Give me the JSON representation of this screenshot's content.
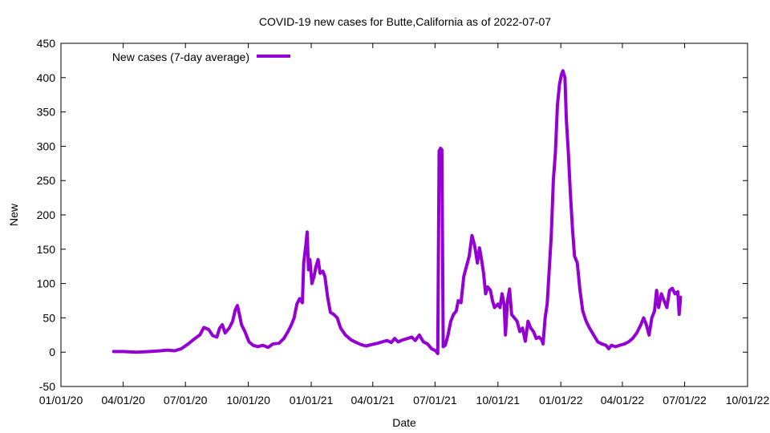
{
  "chart_data": {
    "type": "line",
    "title": "COVID-19 new cases for Butte,California as of 2022-07-07",
    "xlabel": "Date",
    "ylabel": "New",
    "xlim": [
      "2020-01-01",
      "2022-10-01"
    ],
    "ylim": [
      -50,
      450
    ],
    "x_ticks": [
      {
        "date": "2020-01-01",
        "label": "01/01/20"
      },
      {
        "date": "2020-04-01",
        "label": "04/01/20"
      },
      {
        "date": "2020-07-01",
        "label": "07/01/20"
      },
      {
        "date": "2020-10-01",
        "label": "10/01/20"
      },
      {
        "date": "2021-01-01",
        "label": "01/01/21"
      },
      {
        "date": "2021-04-01",
        "label": "04/01/21"
      },
      {
        "date": "2021-07-01",
        "label": "07/01/21"
      },
      {
        "date": "2021-10-01",
        "label": "10/01/21"
      },
      {
        "date": "2022-01-01",
        "label": "01/01/22"
      },
      {
        "date": "2022-04-01",
        "label": "04/01/22"
      },
      {
        "date": "2022-07-01",
        "label": "07/01/22"
      },
      {
        "date": "2022-10-01",
        "label": "10/01/22"
      }
    ],
    "y_ticks": [
      -50,
      0,
      50,
      100,
      150,
      200,
      250,
      300,
      350,
      400,
      450
    ],
    "grid": false,
    "legend": {
      "position": "top-left"
    },
    "series": [
      {
        "name": "New cases (7-day average)",
        "color": "#9400d3",
        "points": [
          [
            "2020-03-18",
            1
          ],
          [
            "2020-04-01",
            1
          ],
          [
            "2020-04-20",
            0
          ],
          [
            "2020-05-10",
            1
          ],
          [
            "2020-05-25",
            2
          ],
          [
            "2020-06-05",
            3
          ],
          [
            "2020-06-15",
            2
          ],
          [
            "2020-06-25",
            5
          ],
          [
            "2020-07-05",
            12
          ],
          [
            "2020-07-15",
            20
          ],
          [
            "2020-07-22",
            25
          ],
          [
            "2020-07-28",
            36
          ],
          [
            "2020-08-04",
            33
          ],
          [
            "2020-08-10",
            24
          ],
          [
            "2020-08-16",
            22
          ],
          [
            "2020-08-20",
            35
          ],
          [
            "2020-08-24",
            40
          ],
          [
            "2020-08-28",
            28
          ],
          [
            "2020-09-03",
            35
          ],
          [
            "2020-09-08",
            45
          ],
          [
            "2020-09-12",
            62
          ],
          [
            "2020-09-15",
            68
          ],
          [
            "2020-09-18",
            55
          ],
          [
            "2020-09-21",
            40
          ],
          [
            "2020-09-26",
            30
          ],
          [
            "2020-10-02",
            15
          ],
          [
            "2020-10-08",
            10
          ],
          [
            "2020-10-15",
            8
          ],
          [
            "2020-10-22",
            10
          ],
          [
            "2020-10-30",
            7
          ],
          [
            "2020-11-06",
            12
          ],
          [
            "2020-11-15",
            13
          ],
          [
            "2020-11-22",
            20
          ],
          [
            "2020-11-28",
            30
          ],
          [
            "2020-12-03",
            40
          ],
          [
            "2020-12-07",
            50
          ],
          [
            "2020-12-11",
            70
          ],
          [
            "2020-12-15",
            78
          ],
          [
            "2020-12-19",
            72
          ],
          [
            "2020-12-21",
            130
          ],
          [
            "2020-12-24",
            155
          ],
          [
            "2020-12-26",
            175
          ],
          [
            "2020-12-28",
            120
          ],
          [
            "2020-12-30",
            135
          ],
          [
            "2021-01-02",
            100
          ],
          [
            "2021-01-05",
            110
          ],
          [
            "2021-01-08",
            125
          ],
          [
            "2021-01-11",
            135
          ],
          [
            "2021-01-14",
            115
          ],
          [
            "2021-01-18",
            118
          ],
          [
            "2021-01-21",
            110
          ],
          [
            "2021-01-25",
            80
          ],
          [
            "2021-01-29",
            58
          ],
          [
            "2021-02-03",
            55
          ],
          [
            "2021-02-08",
            50
          ],
          [
            "2021-02-13",
            35
          ],
          [
            "2021-02-20",
            25
          ],
          [
            "2021-02-28",
            18
          ],
          [
            "2021-03-08",
            14
          ],
          [
            "2021-03-15",
            11
          ],
          [
            "2021-03-22",
            9
          ],
          [
            "2021-03-30",
            11
          ],
          [
            "2021-04-08",
            13
          ],
          [
            "2021-04-15",
            15
          ],
          [
            "2021-04-22",
            17
          ],
          [
            "2021-04-28",
            14
          ],
          [
            "2021-05-03",
            20
          ],
          [
            "2021-05-08",
            15
          ],
          [
            "2021-05-15",
            18
          ],
          [
            "2021-05-22",
            20
          ],
          [
            "2021-05-28",
            22
          ],
          [
            "2021-06-02",
            17
          ],
          [
            "2021-06-08",
            25
          ],
          [
            "2021-06-14",
            15
          ],
          [
            "2021-06-20",
            12
          ],
          [
            "2021-06-26",
            5
          ],
          [
            "2021-07-02",
            2
          ],
          [
            "2021-07-05",
            -2
          ],
          [
            "2021-07-07",
            293
          ],
          [
            "2021-07-09",
            297
          ],
          [
            "2021-07-11",
            295
          ],
          [
            "2021-07-13",
            8
          ],
          [
            "2021-07-16",
            10
          ],
          [
            "2021-07-20",
            25
          ],
          [
            "2021-07-24",
            45
          ],
          [
            "2021-07-28",
            55
          ],
          [
            "2021-08-01",
            60
          ],
          [
            "2021-08-04",
            75
          ],
          [
            "2021-08-08",
            72
          ],
          [
            "2021-08-12",
            110
          ],
          [
            "2021-08-16",
            125
          ],
          [
            "2021-08-20",
            140
          ],
          [
            "2021-08-24",
            170
          ],
          [
            "2021-08-28",
            155
          ],
          [
            "2021-09-01",
            130
          ],
          [
            "2021-09-04",
            152
          ],
          [
            "2021-09-07",
            135
          ],
          [
            "2021-09-10",
            115
          ],
          [
            "2021-09-13",
            85
          ],
          [
            "2021-09-16",
            95
          ],
          [
            "2021-09-20",
            90
          ],
          [
            "2021-09-23",
            75
          ],
          [
            "2021-09-26",
            65
          ],
          [
            "2021-10-01",
            70
          ],
          [
            "2021-10-04",
            65
          ],
          [
            "2021-10-07",
            85
          ],
          [
            "2021-10-10",
            70
          ],
          [
            "2021-10-12",
            25
          ],
          [
            "2021-10-15",
            75
          ],
          [
            "2021-10-18",
            92
          ],
          [
            "2021-10-21",
            55
          ],
          [
            "2021-10-25",
            50
          ],
          [
            "2021-10-29",
            45
          ],
          [
            "2021-11-02",
            30
          ],
          [
            "2021-11-06",
            35
          ],
          [
            "2021-11-10",
            16
          ],
          [
            "2021-11-14",
            45
          ],
          [
            "2021-11-18",
            35
          ],
          [
            "2021-11-22",
            30
          ],
          [
            "2021-11-26",
            20
          ],
          [
            "2021-11-30",
            22
          ],
          [
            "2021-12-04",
            18
          ],
          [
            "2021-12-06",
            12
          ],
          [
            "2021-12-09",
            50
          ],
          [
            "2021-12-12",
            70
          ],
          [
            "2021-12-15",
            120
          ],
          [
            "2021-12-18",
            170
          ],
          [
            "2021-12-21",
            250
          ],
          [
            "2021-12-24",
            290
          ],
          [
            "2021-12-27",
            360
          ],
          [
            "2021-12-30",
            390
          ],
          [
            "2022-01-02",
            405
          ],
          [
            "2022-01-04",
            410
          ],
          [
            "2022-01-07",
            400
          ],
          [
            "2022-01-09",
            340
          ],
          [
            "2022-01-12",
            290
          ],
          [
            "2022-01-15",
            230
          ],
          [
            "2022-01-18",
            180
          ],
          [
            "2022-01-21",
            140
          ],
          [
            "2022-01-25",
            130
          ],
          [
            "2022-01-29",
            90
          ],
          [
            "2022-02-02",
            60
          ],
          [
            "2022-02-07",
            45
          ],
          [
            "2022-02-12",
            35
          ],
          [
            "2022-02-18",
            25
          ],
          [
            "2022-02-24",
            15
          ],
          [
            "2022-03-02",
            12
          ],
          [
            "2022-03-08",
            10
          ],
          [
            "2022-03-12",
            5
          ],
          [
            "2022-03-16",
            10
          ],
          [
            "2022-03-22",
            8
          ],
          [
            "2022-03-28",
            10
          ],
          [
            "2022-04-04",
            12
          ],
          [
            "2022-04-10",
            15
          ],
          [
            "2022-04-16",
            20
          ],
          [
            "2022-04-22",
            28
          ],
          [
            "2022-04-28",
            40
          ],
          [
            "2022-05-02",
            50
          ],
          [
            "2022-05-06",
            40
          ],
          [
            "2022-05-10",
            25
          ],
          [
            "2022-05-14",
            50
          ],
          [
            "2022-05-18",
            60
          ],
          [
            "2022-05-21",
            90
          ],
          [
            "2022-05-24",
            65
          ],
          [
            "2022-05-28",
            85
          ],
          [
            "2022-06-01",
            75
          ],
          [
            "2022-06-05",
            65
          ],
          [
            "2022-06-09",
            90
          ],
          [
            "2022-06-13",
            93
          ],
          [
            "2022-06-17",
            85
          ],
          [
            "2022-06-21",
            88
          ],
          [
            "2022-06-23",
            55
          ],
          [
            "2022-06-25",
            80
          ]
        ]
      }
    ]
  }
}
